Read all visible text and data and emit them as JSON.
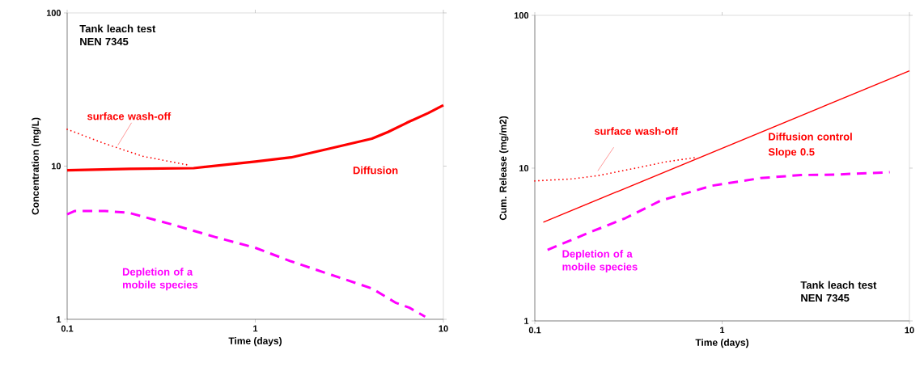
{
  "chart_data": [
    {
      "type": "line",
      "xlabel": "Time (days)",
      "ylabel": "Concentration (mg/L)",
      "log": "xy",
      "xlim": [
        0.1,
        10
      ],
      "ylim": [
        1,
        100
      ],
      "xticks": [
        0.1,
        1,
        10
      ],
      "yticks": [
        1,
        10,
        100
      ],
      "grid": false,
      "legend": false,
      "marker": "none",
      "annotations": [
        "Tank leach test NEN 7345"
      ],
      "series": [
        {
          "name": "surface wash-off",
          "color": "#ff0000",
          "line_style": "dotted",
          "x": [
            0.1,
            0.154,
            0.252,
            0.434
          ],
          "values": [
            17.4,
            14.2,
            11.6,
            10.2
          ]
        },
        {
          "name": "Diffusion",
          "color": "#ff0000",
          "line_style": "solid",
          "x": [
            0.1,
            0.214,
            0.47,
            1.0,
            1.55,
            2.54,
            4.17,
            5.08,
            6.4,
            8.3,
            10
          ],
          "values": [
            9.4,
            9.6,
            9.7,
            10.7,
            11.4,
            13.1,
            15.1,
            16.7,
            19.2,
            22.2,
            25
          ]
        },
        {
          "name": "Depletion of a mobile species",
          "color": "#ff00ff",
          "line_style": "dashed",
          "x": [
            0.1,
            0.11,
            0.159,
            0.214,
            0.351,
            0.615,
            1.0,
            1.55,
            2.54,
            4.17,
            5.6,
            6.6,
            8.0
          ],
          "values": [
            4.85,
            5.1,
            5.1,
            4.95,
            4.2,
            3.44,
            2.93,
            2.39,
            1.95,
            1.59,
            1.28,
            1.19,
            1.04
          ]
        }
      ]
    },
    {
      "type": "line",
      "xlabel": "Time (days)",
      "ylabel": "Cum. Release (mg/m2)",
      "log": "xy",
      "xlim": [
        0.1,
        10
      ],
      "ylim": [
        1,
        100
      ],
      "xticks": [
        0.1,
        1,
        10
      ],
      "yticks": [
        1,
        10,
        100
      ],
      "grid": false,
      "legend": false,
      "marker": "none",
      "annotations": [
        "Slope 0.5",
        "Tank leach test NEN 7345"
      ],
      "series": [
        {
          "name": "surface wash-off",
          "color": "#ff0000",
          "line_style": "dotted",
          "x": [
            0.1,
            0.157,
            0.219,
            0.36,
            0.5,
            0.711
          ],
          "values": [
            8.25,
            8.5,
            8.95,
            10.1,
            11.0,
            11.7
          ]
        },
        {
          "name": "Diffusion control",
          "color": "#ff0000",
          "line_style": "solid",
          "x": [
            0.111,
            10
          ],
          "values": [
            4.43,
            43.3
          ]
        },
        {
          "name": "Depletion of a mobile species",
          "color": "#ff00ff",
          "line_style": "dashed",
          "x": [
            0.117,
            0.205,
            0.305,
            0.47,
            0.88,
            1.6,
            2.63,
            4.05,
            5.1,
            7.85
          ],
          "values": [
            2.92,
            3.88,
            4.71,
            6.13,
            7.67,
            8.6,
            9.02,
            9.06,
            9.2,
            9.4
          ]
        }
      ]
    }
  ]
}
